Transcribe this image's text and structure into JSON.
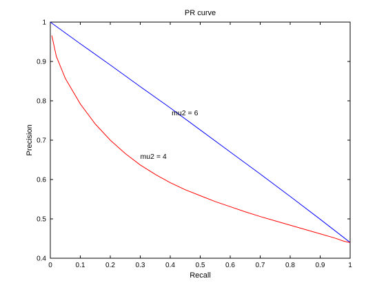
{
  "chart_data": {
    "type": "line",
    "title": "PR curve",
    "xlabel": "Recall",
    "ylabel": "Precision",
    "xlim": [
      0,
      1
    ],
    "ylim": [
      0.4,
      1
    ],
    "x_ticks": [
      0,
      0.1,
      0.2,
      0.3,
      0.4,
      0.5,
      0.6,
      0.7,
      0.8,
      0.9,
      1
    ],
    "x_tick_labels": [
      "0",
      "0.1",
      "0.2",
      "0.3",
      "0.4",
      "0.5",
      "0.6",
      "0.7",
      "0.8",
      "0.9",
      "1"
    ],
    "y_ticks": [
      0.4,
      0.5,
      0.6,
      0.7,
      0.8,
      0.9,
      1
    ],
    "y_tick_labels": [
      "0.4",
      "0.5",
      "0.6",
      "0.7",
      "0.8",
      "0.9",
      "1"
    ],
    "grid": false,
    "legend": "none",
    "series": [
      {
        "color": "#0000ff",
        "x": [
          0,
          0.1,
          0.2,
          0.3,
          0.4,
          0.5,
          0.6,
          0.7,
          0.8,
          0.9,
          1
        ],
        "y": [
          1.0,
          0.945,
          0.891,
          0.836,
          0.782,
          0.726,
          0.67,
          0.614,
          0.557,
          0.499,
          0.44
        ]
      },
      {
        "color": "#ff0000",
        "x": [
          0.005,
          0.02,
          0.05,
          0.1,
          0.15,
          0.2,
          0.25,
          0.3,
          0.35,
          0.4,
          0.45,
          0.5,
          0.55,
          0.6,
          0.65,
          0.7,
          0.75,
          0.8,
          0.85,
          0.9,
          0.95,
          0.98,
          1.0
        ],
        "y": [
          0.966,
          0.913,
          0.857,
          0.792,
          0.741,
          0.7,
          0.666,
          0.637,
          0.613,
          0.592,
          0.574,
          0.559,
          0.544,
          0.531,
          0.518,
          0.506,
          0.495,
          0.484,
          0.473,
          0.462,
          0.451,
          0.443,
          0.44
        ]
      }
    ],
    "annotations": [
      {
        "text": "mu2 = 6",
        "x": 0.405,
        "y": 0.77
      },
      {
        "text": "mu2 = 4",
        "x": 0.3,
        "y": 0.66
      }
    ]
  }
}
